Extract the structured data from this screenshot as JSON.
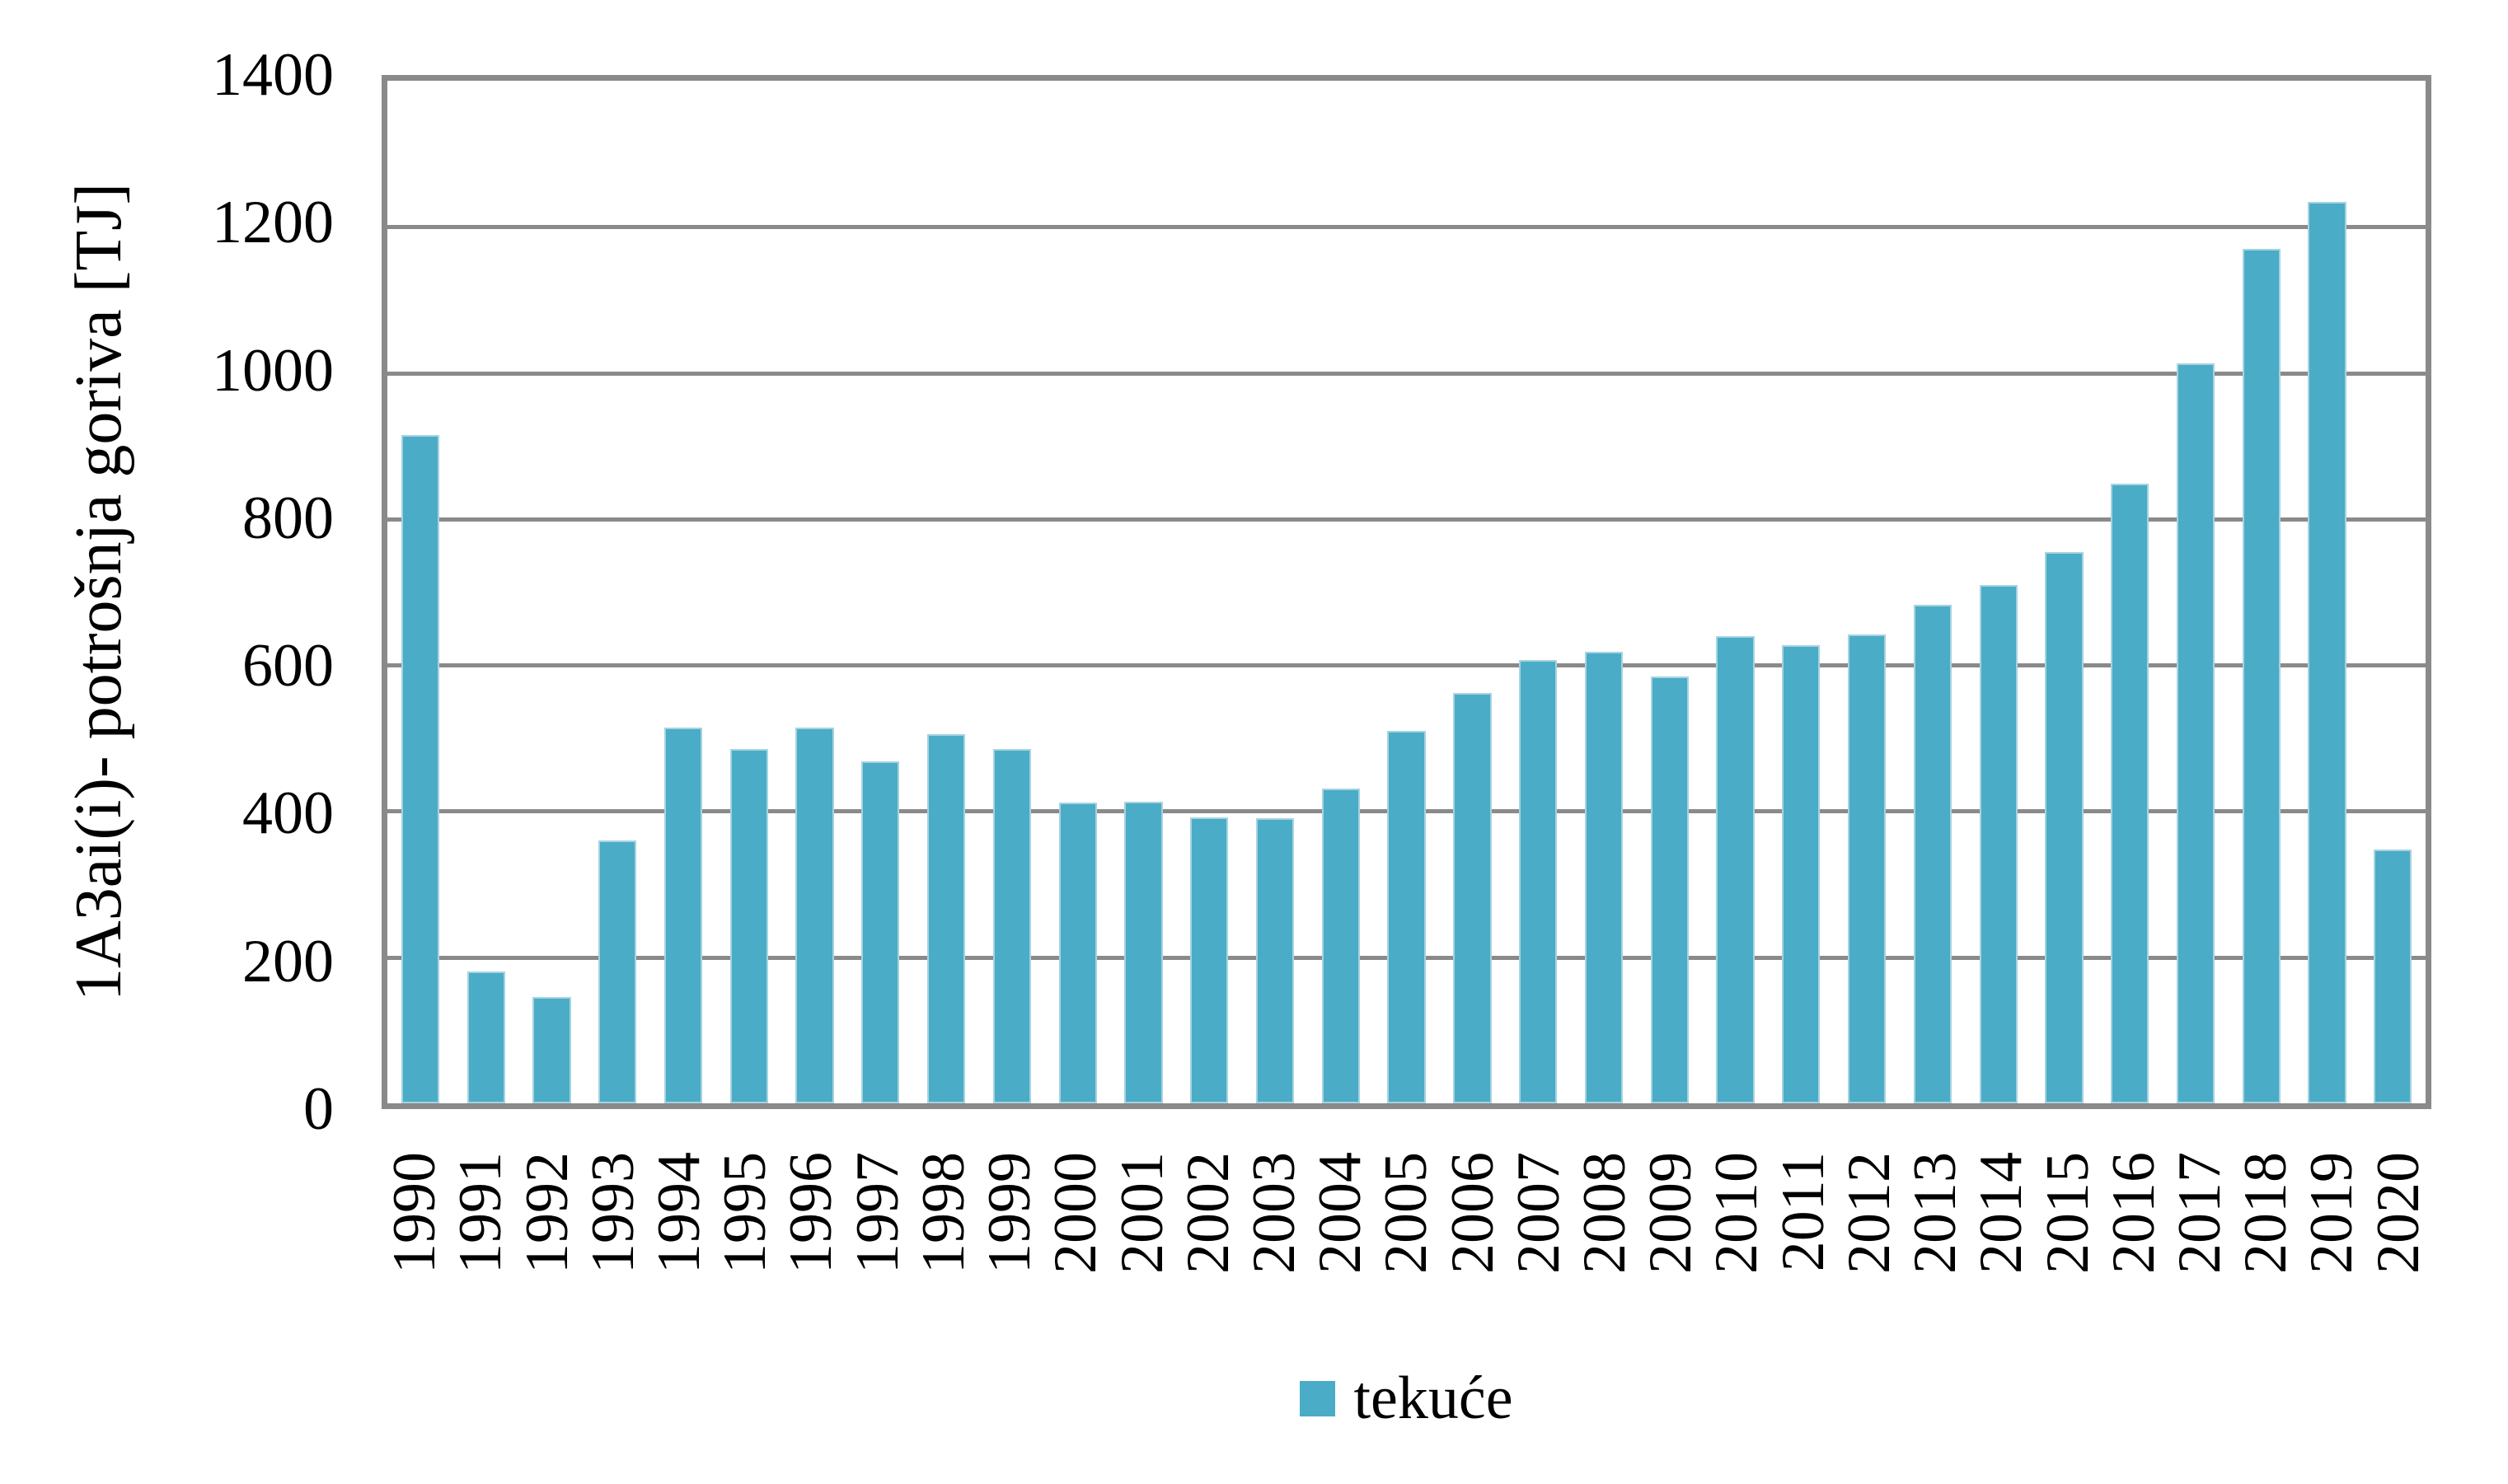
{
  "chart_data": {
    "type": "bar",
    "title": "",
    "ylabel": "1A3ai(i)- potrošnja goriva [TJ]",
    "xlabel": "",
    "ylim": [
      0,
      1400
    ],
    "yticks": [
      0,
      200,
      400,
      600,
      800,
      1000,
      1200,
      1400
    ],
    "grid": "horizontal, every 200, full border around plot",
    "legend_position": "bottom-center",
    "categories": [
      "1990",
      "1991",
      "1992",
      "1993",
      "1994",
      "1995",
      "1996",
      "1997",
      "1998",
      "1999",
      "2000",
      "2001",
      "2002",
      "2003",
      "2004",
      "2005",
      "2006",
      "2007",
      "2008",
      "2009",
      "2010",
      "2011",
      "2012",
      "2013",
      "2014",
      "2015",
      "2016",
      "2017",
      "2018",
      "2019",
      "2020"
    ],
    "series": [
      {
        "name": "tekuće",
        "color": "#4aacc6",
        "values": [
          915,
          180,
          145,
          360,
          515,
          485,
          515,
          468,
          505,
          485,
          412,
          413,
          392,
          390,
          431,
          510,
          562,
          607,
          618,
          584,
          640,
          627,
          642,
          682,
          710,
          755,
          848,
          1013,
          1170,
          1234,
          348
        ]
      }
    ]
  },
  "colors": {
    "bar_fill": "#4aacc6",
    "bar_edge": "#a6d3e0",
    "gridline": "#8a8a8a",
    "plot_border": "#8a8a8a",
    "text": "#000000",
    "background": "#ffffff"
  },
  "legend": {
    "label": "tekuće"
  }
}
